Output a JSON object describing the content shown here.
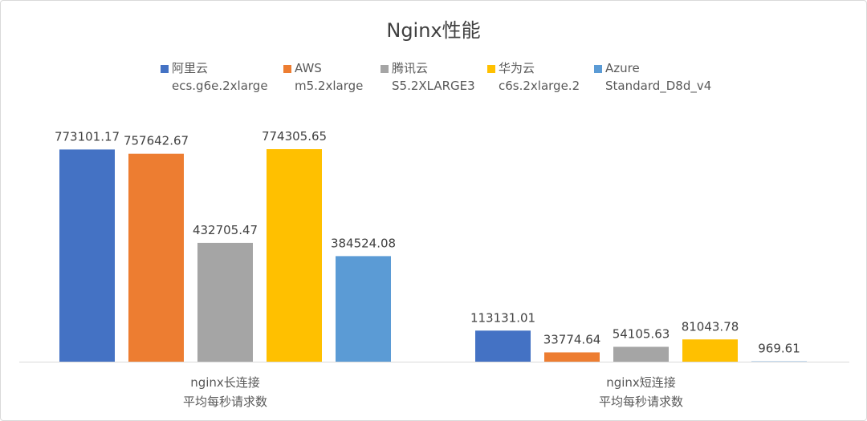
{
  "chart_data": {
    "type": "bar",
    "title": "Nginx性能",
    "categories": [
      [
        "nginx长连接",
        "平均每秒请求数"
      ],
      [
        "nginx短连接",
        "平均每秒请求数"
      ]
    ],
    "series": [
      {
        "name": "阿里云",
        "subname": "ecs.g6e.2xlarge",
        "color": "#4472C4",
        "values": [
          773101.17,
          113131.01
        ],
        "labels": [
          "773101.17",
          "113131.01"
        ]
      },
      {
        "name": "AWS",
        "subname": "m5.2xlarge",
        "color": "#ED7D31",
        "values": [
          757642.67,
          33774.64
        ],
        "labels": [
          "757642.67",
          "33774.64"
        ]
      },
      {
        "name": "腾讯云",
        "subname": "S5.2XLARGE3",
        "color": "#A5A5A5",
        "values": [
          432705.47,
          54105.63
        ],
        "labels": [
          "432705.47",
          "54105.63"
        ]
      },
      {
        "name": "华为云",
        "subname": "c6s.2xlarge.2",
        "color": "#FFC000",
        "values": [
          774305.65,
          81043.78
        ],
        "labels": [
          "774305.65",
          "81043.78"
        ]
      },
      {
        "name": "Azure",
        "subname": "Standard_D8d_v4",
        "color": "#5B9BD5",
        "values": [
          384524.08,
          969.61
        ],
        "labels": [
          "384524.08",
          "969.61"
        ]
      }
    ],
    "xlabel": "",
    "ylabel": "",
    "ylim": [
      0,
      774305.65
    ],
    "grid": false,
    "legend_position": "top"
  }
}
